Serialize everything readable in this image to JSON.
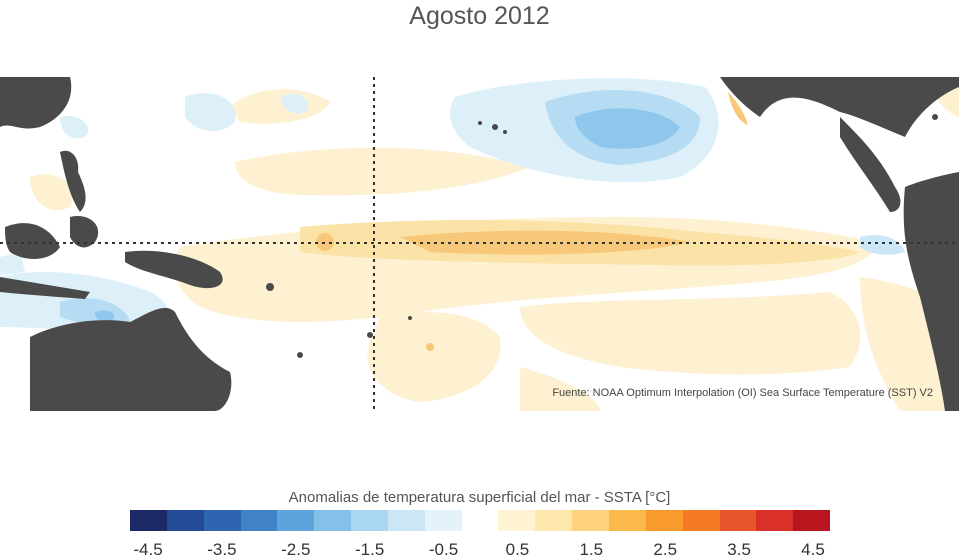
{
  "title": "Agosto 2012",
  "source": "Fuente: NOAA Optimum Interpolation (OI) Sea Surface Temperature (SST) V2",
  "colorbar": {
    "title": "Anomalias de temperatura superficial del mar - SSTA  [°C]",
    "colors": [
      "#1b2a66",
      "#234a94",
      "#2d65b0",
      "#3f82c6",
      "#5ea4dc",
      "#83c0ea",
      "#a9d7f3",
      "#cbe7f7",
      "#e4f2fa",
      "#ffffff",
      "#fff3d4",
      "#fde7ad",
      "#fcd27e",
      "#fbb94a",
      "#f99a2c",
      "#f47a25",
      "#e9552a",
      "#d9302a",
      "#b7161f"
    ],
    "tick_labels": [
      "-4.5",
      "-3.5",
      "-2.5",
      "-1.5",
      "-0.5",
      "0.5",
      "1.5",
      "2.5",
      "3.5",
      "4.5"
    ]
  },
  "colors": {
    "land": "#4a4a4a",
    "ocean": "#ffffff",
    "warm_light": "#fdf1d2",
    "warm_medium": "#fbe2a6",
    "warm_strong": "#f8c87a",
    "cool_light": "#ddeff9",
    "cool_medium": "#b6dcf3",
    "cool_strong": "#8fc7ec"
  }
}
